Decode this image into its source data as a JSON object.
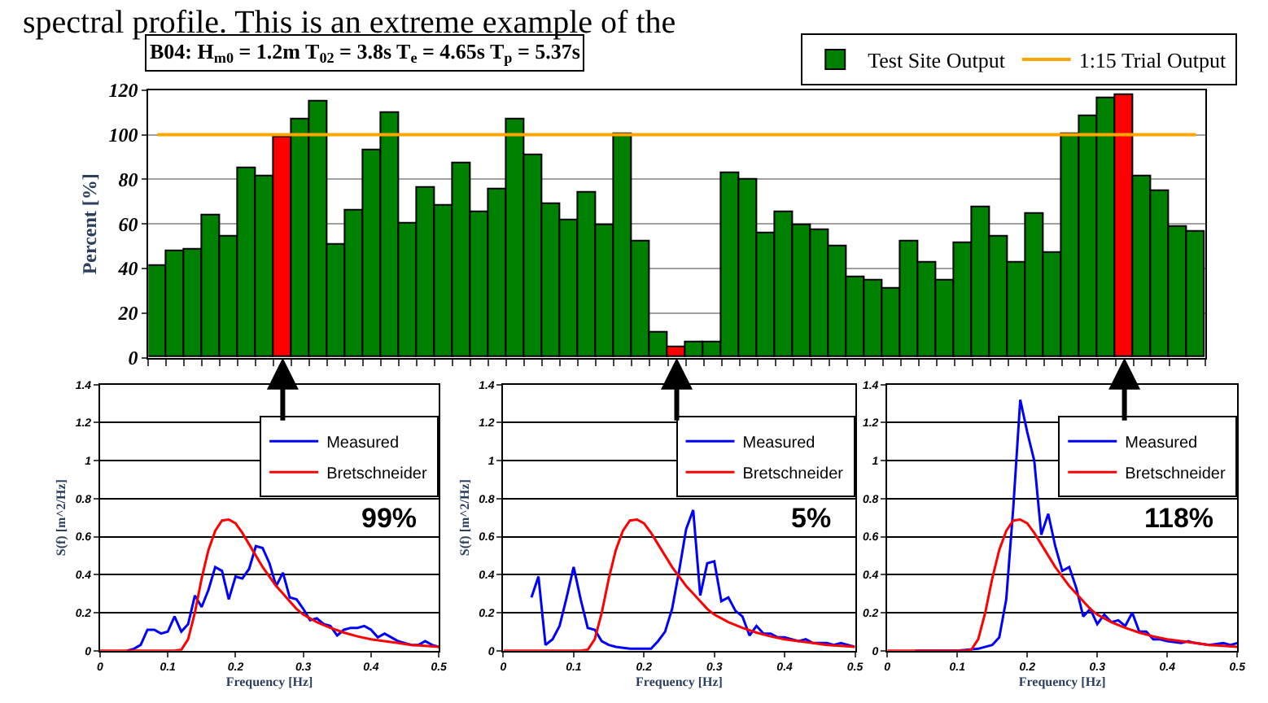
{
  "chart_data": [
    {
      "type": "bar",
      "title": "B04: H$_{m0}$ = 1.2m T$_{02}$ = 3.8s T$_{e}$ = 4.65s T$_{p}$ = 5.37s",
      "ylabel": "Percent [%]",
      "annotations": [
        "spectral profile. This is an extreme example of the"
      ],
      "categories": [
        null,
        null,
        null,
        null,
        null,
        null,
        null,
        null,
        null,
        null,
        null,
        null,
        null,
        null,
        null,
        null,
        null,
        null,
        null,
        null,
        null,
        null,
        null,
        null,
        null,
        null,
        null,
        null,
        null,
        null,
        null,
        null,
        null,
        null,
        null,
        null,
        null,
        null,
        null,
        null,
        null,
        null,
        null,
        null,
        null,
        null,
        null,
        null,
        null,
        null,
        null,
        null,
        null,
        null,
        null,
        null,
        null,
        null,
        null
      ],
      "series": [
        {
          "name": "Test Site Output",
          "color": "#008000",
          "colors": [
            "#008000",
            "#008000",
            "#008000",
            "#008000",
            "#008000",
            "#008000",
            "#008000",
            "#ff0000",
            "#008000",
            "#008000",
            "#008000",
            "#008000",
            "#008000",
            "#008000",
            "#008000",
            "#008000",
            "#008000",
            "#008000",
            "#008000",
            "#008000",
            "#008000",
            "#008000",
            "#008000",
            "#008000",
            "#008000",
            "#008000",
            "#008000",
            "#008000",
            "#008000",
            "#ff0000",
            "#008000",
            "#008000",
            "#008000",
            "#008000",
            "#008000",
            "#008000",
            "#008000",
            "#008000",
            "#008000",
            "#008000",
            "#008000",
            "#008000",
            "#008000",
            "#008000",
            "#008000",
            "#008000",
            "#008000",
            "#008000",
            "#008000",
            "#008000",
            "#008000",
            "#008000",
            "#008000",
            "#008000",
            "#ff0000",
            "#008000",
            "#008000",
            "#008000",
            "#008000"
          ],
          "values": [
            41,
            47.5,
            48.5,
            64,
            54,
            85,
            81,
            99,
            107,
            115,
            51,
            66,
            93,
            110,
            60,
            76,
            68.5,
            87,
            65.5,
            75.5,
            107,
            91,
            69,
            61.5,
            74,
            59.5,
            100,
            52,
            11.5,
            5,
            7,
            7,
            82.5,
            80,
            55.5,
            65,
            59.5,
            57,
            50,
            36,
            34.5,
            31,
            52.5,
            42.5,
            34.5,
            51.5,
            67.5,
            54.5,
            42.5,
            64.5,
            47,
            100,
            108,
            116,
            118,
            81,
            75,
            59,
            56.5
          ]
        },
        {
          "name": "1:15 Trial Output",
          "type": "line",
          "color": "#ffa500",
          "values": [
            100,
            100,
            100,
            100,
            100,
            100,
            100,
            100,
            100,
            100,
            100,
            100,
            100,
            100,
            100,
            100,
            100,
            100,
            100,
            100,
            100,
            100,
            100,
            100,
            100,
            100,
            100,
            100,
            100,
            100,
            100,
            100,
            100,
            100,
            100,
            100,
            100,
            100,
            100,
            100,
            100,
            100,
            100,
            100,
            100,
            100,
            100,
            100,
            100,
            100,
            100,
            100,
            100,
            100,
            100,
            100,
            100,
            100,
            100
          ]
        }
      ],
      "ylim": [
        0,
        120
      ],
      "yticks": [
        0,
        20,
        40,
        60,
        80,
        100,
        120
      ],
      "grid": "y",
      "legend": "top right",
      "tick_labels": "y"
    },
    {
      "type": "line",
      "xlabel": "Frequency [Hz]",
      "ylabel": "S(f) [m^2/Hz]",
      "annotations": [
        "99%"
      ],
      "series": [
        {
          "name": "Measured",
          "color": "#0000ff",
          "x": [
            0.04,
            0.05,
            0.06,
            0.07,
            0.08,
            0.09,
            0.1,
            0.11,
            0.12,
            0.13,
            0.14,
            0.15,
            0.16,
            0.17,
            0.18,
            0.19,
            0.2,
            0.21,
            0.22,
            0.23,
            0.24,
            0.25,
            0.26,
            0.27,
            0.28,
            0.29,
            0.3,
            0.31,
            0.32,
            0.33,
            0.34,
            0.35,
            0.36,
            0.37,
            0.38,
            0.39,
            0.4,
            0.41,
            0.42,
            0.43,
            0.44,
            0.45,
            0.46,
            0.47,
            0.48,
            0.49,
            0.5
          ],
          "values": [
            0,
            0.01,
            0.03,
            0.11,
            0.11,
            0.09,
            0.1,
            0.18,
            0.1,
            0.14,
            0.29,
            0.23,
            0.32,
            0.44,
            0.42,
            0.27,
            0.39,
            0.38,
            0.43,
            0.55,
            0.54,
            0.46,
            0.34,
            0.41,
            0.28,
            0.27,
            0.22,
            0.16,
            0.17,
            0.14,
            0.13,
            0.08,
            0.11,
            0.12,
            0.12,
            0.13,
            0.11,
            0.07,
            0.09,
            0.07,
            0.05,
            0.04,
            0.03,
            0.03,
            0.05,
            0.03,
            0.02
          ]
        },
        {
          "name": "Bretschneider",
          "color": "#ff0000",
          "x": [
            0,
            0.11,
            0.12,
            0.13,
            0.14,
            0.15,
            0.16,
            0.17,
            0.18,
            0.19,
            0.2,
            0.21,
            0.22,
            0.23,
            0.24,
            0.25,
            0.26,
            0.27,
            0.28,
            0.29,
            0.3,
            0.32,
            0.34,
            0.36,
            0.38,
            0.4,
            0.42,
            0.44,
            0.46,
            0.48,
            0.5
          ],
          "values": [
            0,
            0,
            0.005,
            0.06,
            0.2,
            0.38,
            0.53,
            0.63,
            0.685,
            0.69,
            0.67,
            0.62,
            0.56,
            0.5,
            0.44,
            0.39,
            0.34,
            0.3,
            0.26,
            0.22,
            0.19,
            0.15,
            0.12,
            0.095,
            0.075,
            0.06,
            0.05,
            0.04,
            0.03,
            0.025,
            0.02
          ]
        }
      ],
      "xlim": [
        0,
        0.5
      ],
      "xticks": [
        0,
        0.1,
        0.2,
        0.3,
        0.4,
        0.5
      ],
      "ylim": [
        0,
        1.4
      ],
      "yticks": [
        0,
        0.2,
        0.4,
        0.6,
        0.8,
        1,
        1.2,
        1.4
      ],
      "grid": "y",
      "legend": "top right"
    },
    {
      "type": "line",
      "xlabel": "Frequency [Hz]",
      "ylabel": "S(f) [m^2/Hz]",
      "annotations": [
        "5%"
      ],
      "series": [
        {
          "name": "Measured",
          "color": "#0000ff",
          "x": [
            0.04,
            0.05,
            0.06,
            0.07,
            0.08,
            0.09,
            0.1,
            0.11,
            0.12,
            0.13,
            0.14,
            0.15,
            0.16,
            0.18,
            0.2,
            0.21,
            0.22,
            0.23,
            0.24,
            0.25,
            0.26,
            0.27,
            0.28,
            0.29,
            0.3,
            0.31,
            0.32,
            0.33,
            0.34,
            0.35,
            0.36,
            0.37,
            0.38,
            0.39,
            0.4,
            0.41,
            0.42,
            0.43,
            0.44,
            0.45,
            0.46,
            0.47,
            0.48,
            0.49,
            0.5
          ],
          "values": [
            0.28,
            0.39,
            0.03,
            0.06,
            0.13,
            0.28,
            0.44,
            0.27,
            0.12,
            0.11,
            0.05,
            0.03,
            0.02,
            0.01,
            0.01,
            0.01,
            0.05,
            0.1,
            0.22,
            0.42,
            0.64,
            0.74,
            0.29,
            0.46,
            0.47,
            0.26,
            0.28,
            0.21,
            0.18,
            0.08,
            0.13,
            0.09,
            0.09,
            0.07,
            0.07,
            0.06,
            0.05,
            0.06,
            0.04,
            0.04,
            0.04,
            0.03,
            0.04,
            0.03,
            0.02
          ]
        },
        {
          "name": "Bretschneider",
          "color": "#ff0000",
          "x": [
            0,
            0.11,
            0.12,
            0.13,
            0.14,
            0.15,
            0.16,
            0.17,
            0.18,
            0.19,
            0.2,
            0.21,
            0.22,
            0.23,
            0.24,
            0.25,
            0.26,
            0.27,
            0.28,
            0.29,
            0.3,
            0.32,
            0.34,
            0.36,
            0.38,
            0.4,
            0.42,
            0.44,
            0.46,
            0.48,
            0.5
          ],
          "values": [
            0,
            0,
            0.005,
            0.06,
            0.2,
            0.38,
            0.53,
            0.63,
            0.685,
            0.69,
            0.67,
            0.62,
            0.56,
            0.5,
            0.44,
            0.39,
            0.34,
            0.3,
            0.26,
            0.22,
            0.19,
            0.15,
            0.12,
            0.095,
            0.075,
            0.06,
            0.05,
            0.04,
            0.03,
            0.025,
            0.02
          ]
        }
      ],
      "xlim": [
        0,
        0.5
      ],
      "xticks": [
        0,
        0.1,
        0.2,
        0.3,
        0.4,
        0.5
      ],
      "ylim": [
        0,
        1.4
      ],
      "yticks": [
        0,
        0.2,
        0.4,
        0.6,
        0.8,
        1,
        1.2,
        1.4
      ],
      "grid": "y",
      "legend": "top right"
    },
    {
      "type": "line",
      "xlabel": "Frequency [Hz]",
      "annotations": [
        "118%"
      ],
      "series": [
        {
          "name": "Measured",
          "color": "#0000ff",
          "x": [
            0.04,
            0.1,
            0.13,
            0.15,
            0.16,
            0.17,
            0.18,
            0.19,
            0.2,
            0.21,
            0.22,
            0.23,
            0.24,
            0.25,
            0.26,
            0.27,
            0.28,
            0.29,
            0.3,
            0.31,
            0.32,
            0.33,
            0.34,
            0.35,
            0.36,
            0.37,
            0.38,
            0.39,
            0.4,
            0.42,
            0.43,
            0.44,
            0.46,
            0.48,
            0.49,
            0.5
          ],
          "values": [
            0,
            0,
            0.01,
            0.03,
            0.07,
            0.27,
            0.75,
            1.32,
            1.15,
            1.0,
            0.61,
            0.72,
            0.55,
            0.42,
            0.44,
            0.33,
            0.18,
            0.22,
            0.14,
            0.19,
            0.15,
            0.16,
            0.13,
            0.2,
            0.1,
            0.1,
            0.06,
            0.06,
            0.05,
            0.04,
            0.05,
            0.04,
            0.03,
            0.04,
            0.03,
            0.04
          ]
        },
        {
          "name": "Bretschneider",
          "color": "#ff0000",
          "x": [
            0,
            0.11,
            0.12,
            0.13,
            0.14,
            0.15,
            0.16,
            0.17,
            0.18,
            0.19,
            0.2,
            0.21,
            0.22,
            0.23,
            0.24,
            0.25,
            0.26,
            0.27,
            0.28,
            0.29,
            0.3,
            0.32,
            0.34,
            0.36,
            0.38,
            0.4,
            0.42,
            0.44,
            0.46,
            0.48,
            0.5
          ],
          "values": [
            0,
            0,
            0.005,
            0.06,
            0.2,
            0.38,
            0.53,
            0.63,
            0.685,
            0.69,
            0.67,
            0.62,
            0.56,
            0.5,
            0.44,
            0.39,
            0.34,
            0.3,
            0.26,
            0.22,
            0.19,
            0.15,
            0.12,
            0.095,
            0.075,
            0.06,
            0.05,
            0.04,
            0.03,
            0.025,
            0.02
          ]
        }
      ],
      "xlim": [
        0,
        0.5
      ],
      "xticks": [
        0,
        0.1,
        0.2,
        0.3,
        0.4,
        0.5
      ],
      "ylim": [
        0,
        1.4
      ],
      "yticks": [
        0,
        0.2,
        0.4,
        0.6,
        0.8,
        1,
        1.2,
        1.4
      ],
      "grid": "y",
      "legend": "top right"
    }
  ]
}
